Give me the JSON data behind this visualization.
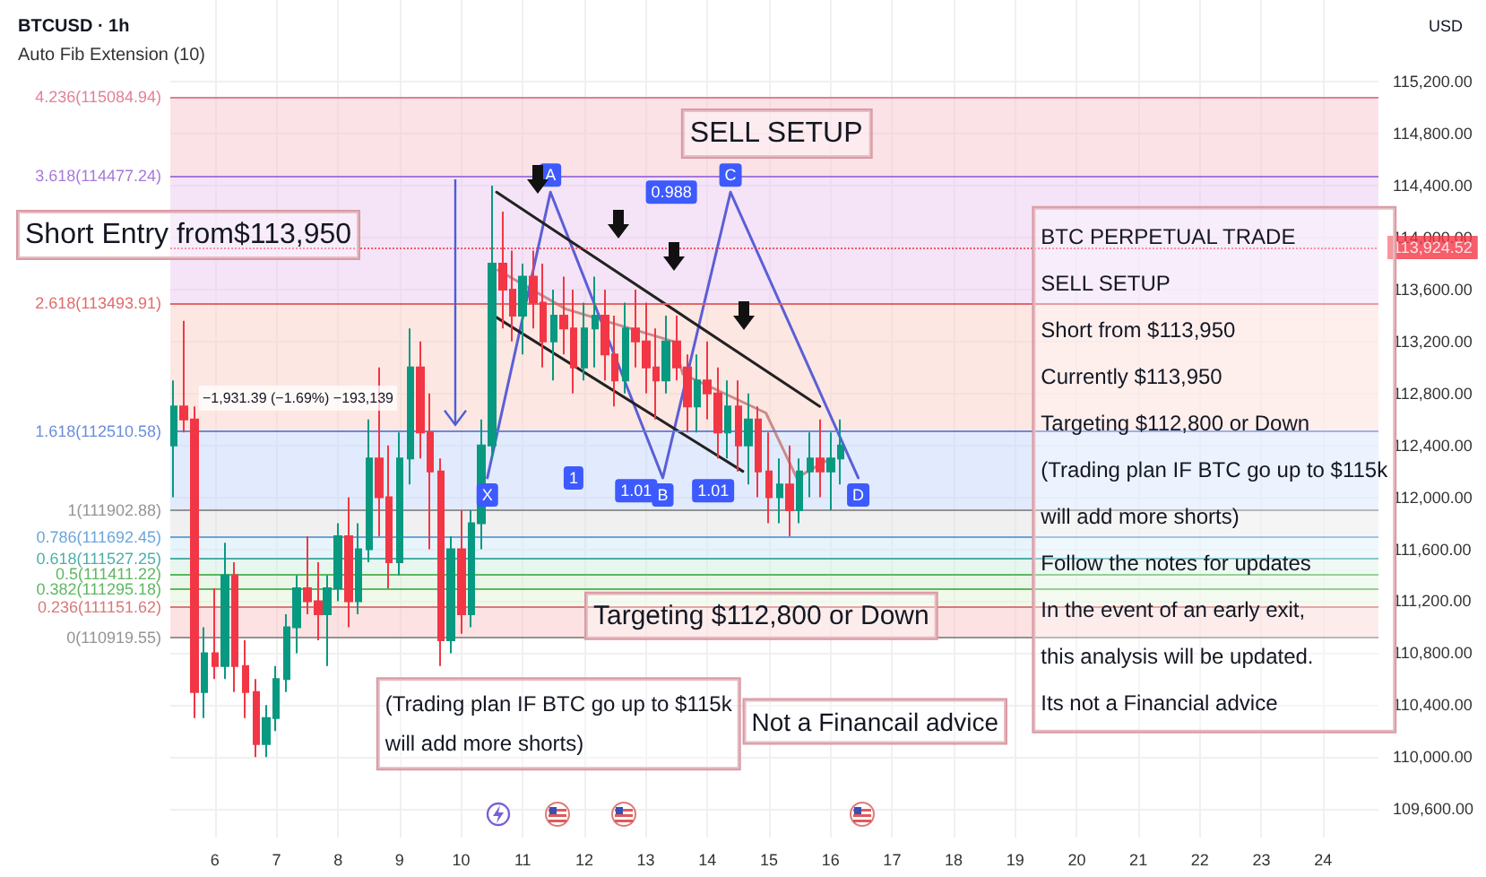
{
  "chart_data": {
    "type": "candlestick",
    "title": "BTCUSD · 1h",
    "subtitle": "Auto Fib Extension (10)",
    "ylabel": "USD",
    "x": [
      5.33,
      5.5,
      5.67,
      5.83,
      6.0,
      6.17,
      6.33,
      6.5,
      6.67,
      6.83,
      7.0,
      7.17,
      7.33,
      7.5,
      7.67,
      7.83,
      8.0,
      8.17,
      8.33,
      8.5,
      8.67,
      8.83,
      9.0,
      9.17,
      9.33,
      9.5,
      9.67,
      9.83,
      10.0,
      10.17,
      10.33,
      10.5,
      10.67,
      10.83,
      11.0,
      11.17,
      11.33,
      11.5,
      11.67,
      11.83,
      12.0,
      12.17,
      12.33,
      12.5,
      12.67,
      12.83,
      13.0,
      13.17,
      13.33,
      13.5,
      13.67,
      13.83,
      14.0,
      14.17,
      14.33,
      14.5,
      14.67,
      14.83,
      15.0,
      15.17,
      15.33,
      15.5,
      15.67,
      15.83,
      16.0,
      16.17
    ],
    "ohlc": [
      [
        112400,
        112900,
        112000,
        112700
      ],
      [
        112700,
        113360,
        112500,
        112600
      ],
      [
        112600,
        112700,
        110300,
        110500
      ],
      [
        110500,
        111000,
        110300,
        110800
      ],
      [
        110800,
        111300,
        110600,
        110700
      ],
      [
        110700,
        111650,
        110600,
        111400
      ],
      [
        111400,
        111500,
        110500,
        110700
      ],
      [
        110700,
        110900,
        110300,
        110500
      ],
      [
        110500,
        110600,
        110000,
        110100
      ],
      [
        110100,
        110400,
        110000,
        110300
      ],
      [
        110300,
        110700,
        110200,
        110600
      ],
      [
        110600,
        111100,
        110500,
        111000
      ],
      [
        111000,
        111400,
        110800,
        111300
      ],
      [
        111300,
        111700,
        111100,
        111200
      ],
      [
        111200,
        111500,
        110900,
        111100
      ],
      [
        111100,
        111400,
        110700,
        111300
      ],
      [
        111300,
        111800,
        111200,
        111700
      ],
      [
        111700,
        112000,
        111000,
        111200
      ],
      [
        111200,
        111800,
        111100,
        111600
      ],
      [
        111600,
        112600,
        111500,
        112300
      ],
      [
        112300,
        113000,
        111700,
        112000
      ],
      [
        112000,
        112400,
        111300,
        111500
      ],
      [
        111500,
        112500,
        111400,
        112300
      ],
      [
        112300,
        113300,
        112100,
        113000
      ],
      [
        113000,
        113200,
        112300,
        112500
      ],
      [
        112500,
        112800,
        111600,
        112200
      ],
      [
        112200,
        112300,
        110700,
        110900
      ],
      [
        110900,
        111700,
        110800,
        111600
      ],
      [
        111600,
        111900,
        110950,
        111100
      ],
      [
        111100,
        111900,
        111000,
        111800
      ],
      [
        111800,
        112600,
        111600,
        112400
      ],
      [
        112400,
        114400,
        112300,
        113800
      ],
      [
        113800,
        114200,
        113300,
        113600
      ],
      [
        113600,
        113900,
        113200,
        113400
      ],
      [
        113400,
        113800,
        113100,
        113700
      ],
      [
        113700,
        113900,
        113300,
        113500
      ],
      [
        113500,
        113800,
        113000,
        113200
      ],
      [
        113200,
        113600,
        112900,
        113400
      ],
      [
        113400,
        113700,
        113100,
        113300
      ],
      [
        113300,
        113600,
        112800,
        113000
      ],
      [
        113000,
        113500,
        112900,
        113300
      ],
      [
        113300,
        113700,
        113000,
        113400
      ],
      [
        113400,
        113600,
        112900,
        113100
      ],
      [
        113100,
        113400,
        112700,
        112900
      ],
      [
        112900,
        113500,
        112800,
        113300
      ],
      [
        113300,
        113600,
        113000,
        113200
      ],
      [
        113200,
        113500,
        112800,
        113000
      ],
      [
        113000,
        113300,
        112600,
        112900
      ],
      [
        112900,
        113400,
        112800,
        113200
      ],
      [
        113200,
        113400,
        112900,
        113000
      ],
      [
        113000,
        113100,
        112500,
        112700
      ],
      [
        112700,
        113100,
        112500,
        112900
      ],
      [
        112900,
        113200,
        112600,
        112800
      ],
      [
        112800,
        113000,
        112300,
        112500
      ],
      [
        112500,
        112900,
        112300,
        112700
      ],
      [
        112700,
        112900,
        112200,
        112400
      ],
      [
        112400,
        112800,
        112100,
        112600
      ],
      [
        112600,
        112700,
        112000,
        112200
      ],
      [
        112200,
        112500,
        111800,
        112000
      ],
      [
        112000,
        112300,
        111800,
        112100
      ],
      [
        112100,
        112400,
        111700,
        111900
      ],
      [
        111900,
        112300,
        111800,
        112200
      ],
      [
        112200,
        112500,
        112000,
        112300
      ],
      [
        112300,
        112600,
        112000,
        112200
      ],
      [
        112200,
        112500,
        111900,
        112300
      ],
      [
        112300,
        112600,
        112100,
        112400
      ]
    ],
    "series": [
      {
        "type": "line",
        "color": "#c98b8b",
        "line_style": "solid",
        "x": [
          10.6,
          11.7,
          13.45,
          13.6,
          14.95,
          15.45,
          16.0
        ],
        "values": [
          113750,
          113450,
          113200,
          112950,
          112650,
          112150,
          112300
        ]
      },
      {
        "type": "line",
        "color": "#5b5fd6",
        "line_style": "solid",
        "x": [
          10.425,
          11.45,
          13.275,
          14.375,
          16.45
        ],
        "values": [
          112150,
          114350,
          112150,
          114350,
          112150
        ]
      },
      {
        "type": "line",
        "color": "#222222",
        "line_style": "solid",
        "x": [
          10.575,
          15.825
        ],
        "values": [
          114350,
          112700
        ]
      },
      {
        "type": "line",
        "color": "#222222",
        "line_style": "solid",
        "x": [
          10.525,
          14.575
        ],
        "values": [
          113400,
          112200
        ]
      }
    ],
    "xlim": [
      5.275,
      24.9
    ],
    "xticks": [
      6,
      7,
      8,
      9,
      10,
      11,
      12,
      13,
      14,
      15,
      16,
      17,
      18,
      19,
      20,
      21,
      22,
      23,
      24
    ],
    "ylim": [
      109380,
      115830
    ],
    "yticks": [
      {
        "value": 109600,
        "label": "109,600.00"
      },
      {
        "value": 110000,
        "label": "110,000.00"
      },
      {
        "value": 110400,
        "label": "110,400.00"
      },
      {
        "value": 110800,
        "label": "110,800.00"
      },
      {
        "value": 111200,
        "label": "111,200.00"
      },
      {
        "value": 111600,
        "label": "111,600.00"
      },
      {
        "value": 112000,
        "label": "112,000.00"
      },
      {
        "value": 112400,
        "label": "112,400.00"
      },
      {
        "value": 112800,
        "label": "112,800.00"
      },
      {
        "value": 113200,
        "label": "113,200.00"
      },
      {
        "value": 113600,
        "label": "113,600.00"
      },
      {
        "value": 114000,
        "label": "114,000.00"
      },
      {
        "value": 114400,
        "label": "114,400.00"
      },
      {
        "value": 114800,
        "label": "114,800.00"
      },
      {
        "value": 115200,
        "label": "115,200.00"
      }
    ],
    "grid": true,
    "marker": "none",
    "ref_lines": [
      {
        "axis": "y",
        "value": 115084.94,
        "label": "4.236(115084.94)",
        "color": "#e0728c"
      },
      {
        "axis": "y",
        "value": 114477.24,
        "label": "3.618(114477.24)",
        "color": "#9c6ad6"
      },
      {
        "axis": "y",
        "value": 113493.91,
        "label": "2.618(113493.91)",
        "color": "#e05a5a"
      },
      {
        "axis": "y",
        "value": 112510.58,
        "label": "1.618(112510.58)",
        "color": "#5b7fd6"
      },
      {
        "axis": "y",
        "value": 111902.88,
        "label": "1(111902.88)",
        "color": "#888888"
      },
      {
        "axis": "y",
        "value": 111692.45,
        "label": "0.786(111692.45)",
        "color": "#5b9bd6"
      },
      {
        "axis": "y",
        "value": 111527.25,
        "label": "0.618(111527.25)",
        "color": "#3aa6a0"
      },
      {
        "axis": "y",
        "value": 111411.22,
        "label": "0.5(111411.22)",
        "color": "#4caf50"
      },
      {
        "axis": "y",
        "value": 111295.18,
        "label": "0.382(111295.18)",
        "color": "#4caf50"
      },
      {
        "axis": "y",
        "value": 111151.62,
        "label": "0.236(111151.62)",
        "color": "#d46a6a"
      },
      {
        "axis": "y",
        "value": 110919.55,
        "label": "0(110919.55)",
        "color": "#888888"
      },
      {
        "axis": "y",
        "value": 113924.52,
        "label": "113,924.52",
        "color": "#f23645",
        "line_style": "dotted"
      }
    ],
    "bands": [
      {
        "axis": "y",
        "from": 114477.24,
        "to": 115084.94,
        "color": "#f7c6d0"
      },
      {
        "axis": "y",
        "from": 113493.91,
        "to": 114477.24,
        "color": "#ebc9ef"
      },
      {
        "axis": "y",
        "from": 112510.58,
        "to": 113493.91,
        "color": "#fbd0c8"
      },
      {
        "axis": "y",
        "from": 111902.88,
        "to": 112510.58,
        "color": "#c6d7fb"
      },
      {
        "axis": "y",
        "from": 111692.45,
        "to": 111902.88,
        "color": "#e2e2e2"
      },
      {
        "axis": "y",
        "from": 111527.25,
        "to": 111692.45,
        "color": "#cfeaf8"
      },
      {
        "axis": "y",
        "from": 111411.22,
        "to": 111527.25,
        "color": "#cfeedd"
      },
      {
        "axis": "y",
        "from": 111295.18,
        "to": 111411.22,
        "color": "#d6f0d2"
      },
      {
        "axis": "y",
        "from": 111151.62,
        "to": 111295.18,
        "color": "#e1f3d6"
      },
      {
        "axis": "y",
        "from": 110919.55,
        "to": 111151.62,
        "color": "#f9c6c6"
      }
    ],
    "annotations": [
      "SELL SETUP",
      "Short Entry from$113,950",
      "Targeting $112,800 or Down",
      "(Trading plan IF BTC go up to $115k\nwill add more shorts)",
      "Not a Financail advice",
      "BTC PERPETUAL TRADE\nSELL SETUP\nShort from $113,950\nCurrently $113,950\nTargeting $112,800 or Down\n(Trading plan IF BTC go up to $115k\nwill add more shorts)\nFollow the notes for updates\nIn the event of an early exit,\nthis analysis will be updated.\nIts not a Financial advice",
      "−1,931.39 (−1.69%) −193,139",
      {
        "text": "X",
        "x": 10.425,
        "y": 112150
      },
      {
        "text": "A",
        "x": 11.45,
        "y": 114350
      },
      {
        "text": "B",
        "x": 13.275,
        "y": 112150
      },
      {
        "text": "C",
        "x": 14.375,
        "y": 114350
      },
      {
        "text": "D",
        "x": 16.45,
        "y": 112150
      },
      "1",
      "1.01",
      "1.01",
      "0.988"
    ]
  }
}
